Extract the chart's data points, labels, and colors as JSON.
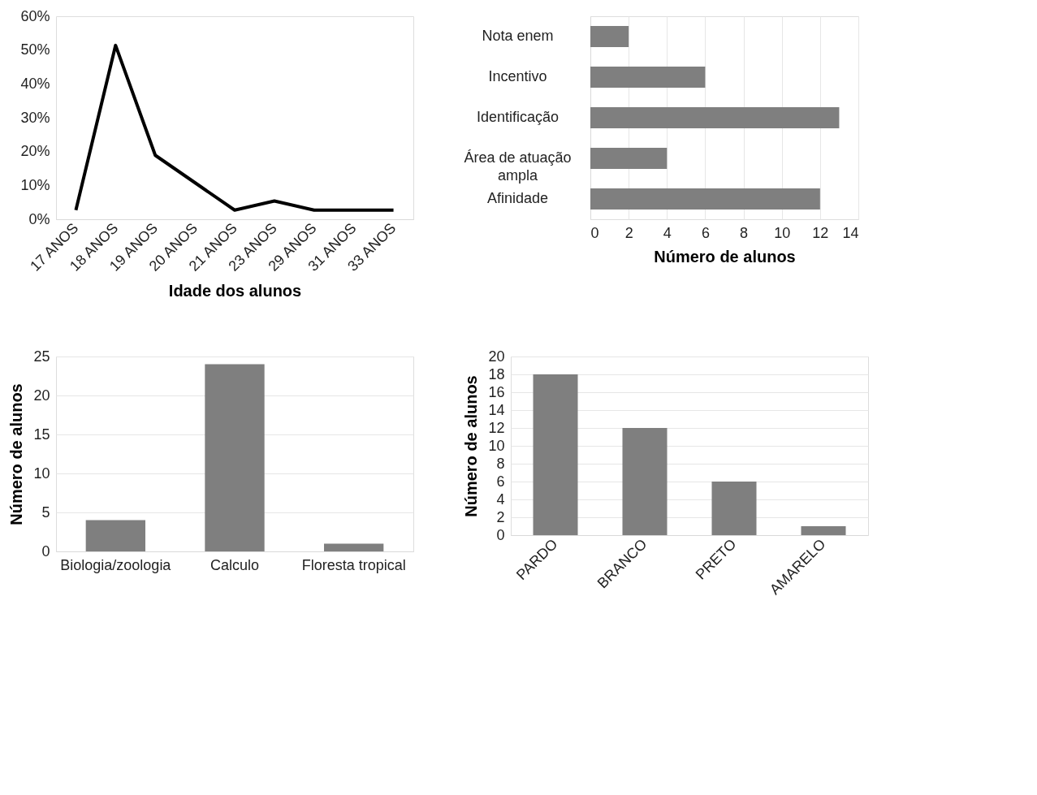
{
  "chart_data": [
    {
      "type": "line",
      "xlabel": "Idade dos alunos",
      "categories": [
        "17 ANOS",
        "18 ANOS",
        "19 ANOS",
        "20 ANOS",
        "21 ANOS",
        "23 ANOS",
        "29 ANOS",
        "31 ANOS",
        "33 ANOS"
      ],
      "series": [
        {
          "color": "#000000",
          "values": [
            2.7,
            51.4,
            18.9,
            10.8,
            2.7,
            5.4,
            2.7,
            2.7,
            2.7
          ]
        }
      ],
      "ylim": [
        0,
        60
      ],
      "yticks": [
        {
          "value": 0,
          "label": "0%"
        },
        {
          "value": 10,
          "label": "10%"
        },
        {
          "value": 20,
          "label": "20%"
        },
        {
          "value": 30,
          "label": "30%"
        },
        {
          "value": 40,
          "label": "40%"
        },
        {
          "value": 50,
          "label": "50%"
        },
        {
          "value": 60,
          "label": "60%"
        }
      ],
      "grid": false,
      "marker": "none",
      "line_style": "solid"
    },
    {
      "type": "bar",
      "orientation": "horizontal",
      "xlabel": "Número de alunos",
      "categories": [
        "Nota enem",
        "Incentivo",
        "Identificação",
        "Área de atuação ampla",
        "Afinidade"
      ],
      "values": [
        2,
        6,
        13,
        4,
        12
      ],
      "color": "#7f7f7f",
      "xlim": [
        0,
        14
      ],
      "xticks": [
        0,
        2,
        4,
        6,
        8,
        10,
        12,
        14
      ],
      "grid": "x"
    },
    {
      "type": "bar",
      "ylabel": "Número de alunos",
      "categories": [
        "Biologia/zoologia",
        "Calculo",
        "Floresta tropical"
      ],
      "values": [
        4,
        24,
        1
      ],
      "color": "#7f7f7f",
      "ylim": [
        0,
        25
      ],
      "yticks": [
        0,
        5,
        10,
        15,
        20,
        25
      ],
      "grid": "y"
    },
    {
      "type": "bar",
      "ylabel": "Número de alunos",
      "categories": [
        "PARDO",
        "BRANCO",
        "PRETO",
        "AMARELO"
      ],
      "values": [
        18,
        12,
        6,
        1
      ],
      "color": "#7f7f7f",
      "ylim": [
        0,
        20
      ],
      "yticks": [
        0,
        2,
        4,
        6,
        8,
        10,
        12,
        14,
        16,
        18,
        20
      ],
      "grid": "y"
    }
  ]
}
